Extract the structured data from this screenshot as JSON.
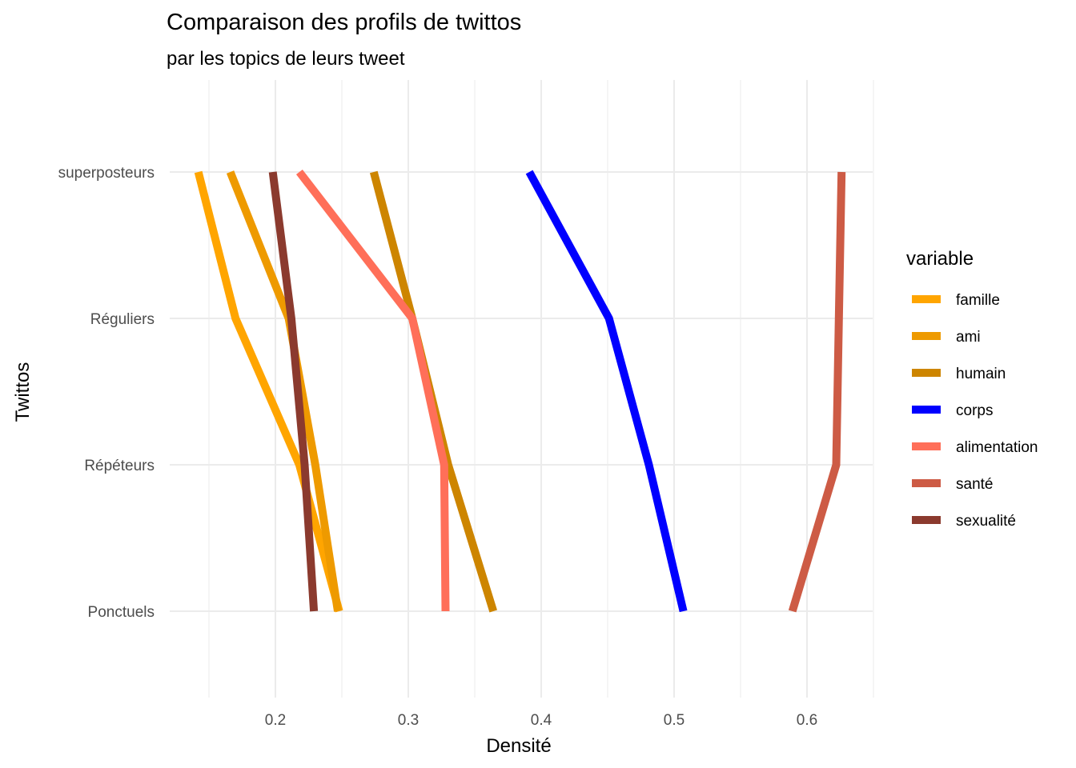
{
  "chart_data": {
    "type": "line",
    "title": "Comparaison des profils de twittos",
    "subtitle": "par les topics de leurs tweet",
    "xlabel": "Densité",
    "ylabel": "Twittos",
    "xlim": [
      0.12,
      0.65
    ],
    "x_ticks": [
      0.2,
      0.3,
      0.4,
      0.5,
      0.6
    ],
    "x_tick_labels": [
      "0.2",
      "0.3",
      "0.4",
      "0.5",
      "0.6"
    ],
    "categories": [
      "superposteurs",
      "Réguliers",
      "Répéteurs",
      "Ponctuels"
    ],
    "grid": true,
    "legend_title": "variable",
    "legend_position": "right",
    "series": [
      {
        "name": "famille",
        "color": "#FFA500",
        "values": [
          0.142,
          0.17,
          0.218,
          0.248
        ]
      },
      {
        "name": "ami",
        "color": "#EE9A00",
        "values": [
          0.166,
          0.21,
          0.23,
          0.247
        ]
      },
      {
        "name": "humain",
        "color": "#CD8500",
        "values": [
          0.274,
          0.303,
          0.33,
          0.364
        ]
      },
      {
        "name": "corps",
        "color": "#0000FF",
        "values": [
          0.391,
          0.451,
          0.481,
          0.507
        ]
      },
      {
        "name": "alimentation",
        "color": "#FF6F59",
        "values": [
          0.218,
          0.303,
          0.327,
          0.328
        ]
      },
      {
        "name": "santé",
        "color": "#CD5B45",
        "values": [
          0.626,
          0.624,
          0.622,
          0.589
        ]
      },
      {
        "name": "sexualité",
        "color": "#8B3A2E",
        "values": [
          0.198,
          0.212,
          0.222,
          0.229
        ]
      }
    ]
  }
}
